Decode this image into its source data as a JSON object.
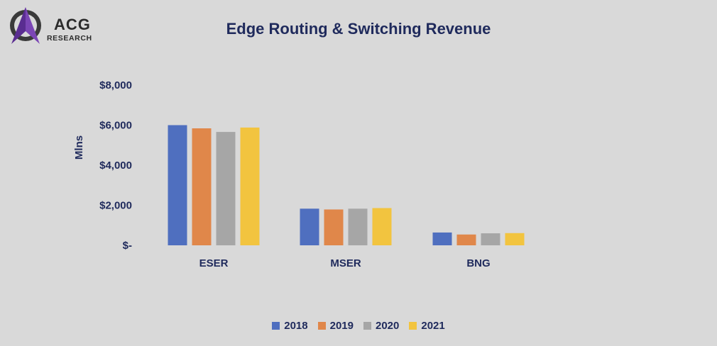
{
  "logo": {
    "text_main": "ACG",
    "text_sub": "RESEARCH"
  },
  "chart_data": {
    "type": "bar",
    "title": "Edge Routing & Switching Revenue",
    "ylabel": "Mlns",
    "xlabel": "",
    "categories": [
      "ESER",
      "MSER",
      "BNG"
    ],
    "ylim": [
      0,
      8000
    ],
    "yticks": [
      0,
      2000,
      4000,
      6000,
      8000
    ],
    "ytick_labels": [
      "$-",
      "$2,000",
      "$4,000",
      "$6,000",
      "$8,000"
    ],
    "grid": false,
    "legend_position": "bottom",
    "series": [
      {
        "name": "2018",
        "color": "#4f6fbf",
        "values": [
          6000,
          1830,
          640
        ]
      },
      {
        "name": "2019",
        "color": "#e0874a",
        "values": [
          5840,
          1790,
          540
        ]
      },
      {
        "name": "2020",
        "color": "#a6a6a6",
        "values": [
          5660,
          1830,
          600
        ]
      },
      {
        "name": "2021",
        "color": "#f2c43f",
        "values": [
          5880,
          1860,
          610
        ]
      }
    ]
  }
}
